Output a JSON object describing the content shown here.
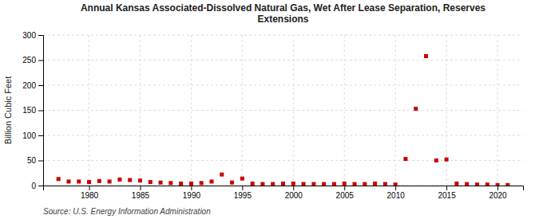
{
  "chart_data": {
    "type": "scatter",
    "title": "Annual Kansas Associated-Dissolved Natural Gas, Wet After Lease Separation, Reserves\nExtensions",
    "ylabel": "Billion Cubic Feet",
    "annotations": [
      "Source: U.S. Energy Information Administration"
    ],
    "x": [
      1977,
      1978,
      1979,
      1980,
      1981,
      1982,
      1983,
      1984,
      1985,
      1986,
      1987,
      1988,
      1989,
      1990,
      1991,
      1992,
      1993,
      1994,
      1995,
      1996,
      1997,
      1998,
      1999,
      2000,
      2001,
      2002,
      2003,
      2004,
      2005,
      2006,
      2007,
      2008,
      2009,
      2010,
      2011,
      2012,
      2013,
      2014,
      2015,
      2016,
      2017,
      2018,
      2019,
      2020,
      2021
    ],
    "values": [
      13,
      8,
      8,
      7,
      9,
      8,
      12,
      11,
      10,
      7,
      6,
      5,
      4,
      4,
      5,
      8,
      22,
      6,
      14,
      4,
      3,
      3,
      4,
      4,
      3,
      3,
      3,
      3,
      4,
      3,
      3,
      4,
      3,
      2,
      53,
      153,
      258,
      50,
      52,
      4,
      3,
      2,
      2,
      1,
      1
    ],
    "color": "#cc0000",
    "marker": "square",
    "xlim": [
      1975.5,
      2022.5
    ],
    "ylim": [
      0,
      300
    ],
    "xticks": [
      1980,
      1985,
      1990,
      1995,
      2000,
      2005,
      2010,
      2015,
      2020
    ],
    "yticks": [
      0,
      50,
      100,
      150,
      200,
      250,
      300
    ],
    "grid": true
  }
}
